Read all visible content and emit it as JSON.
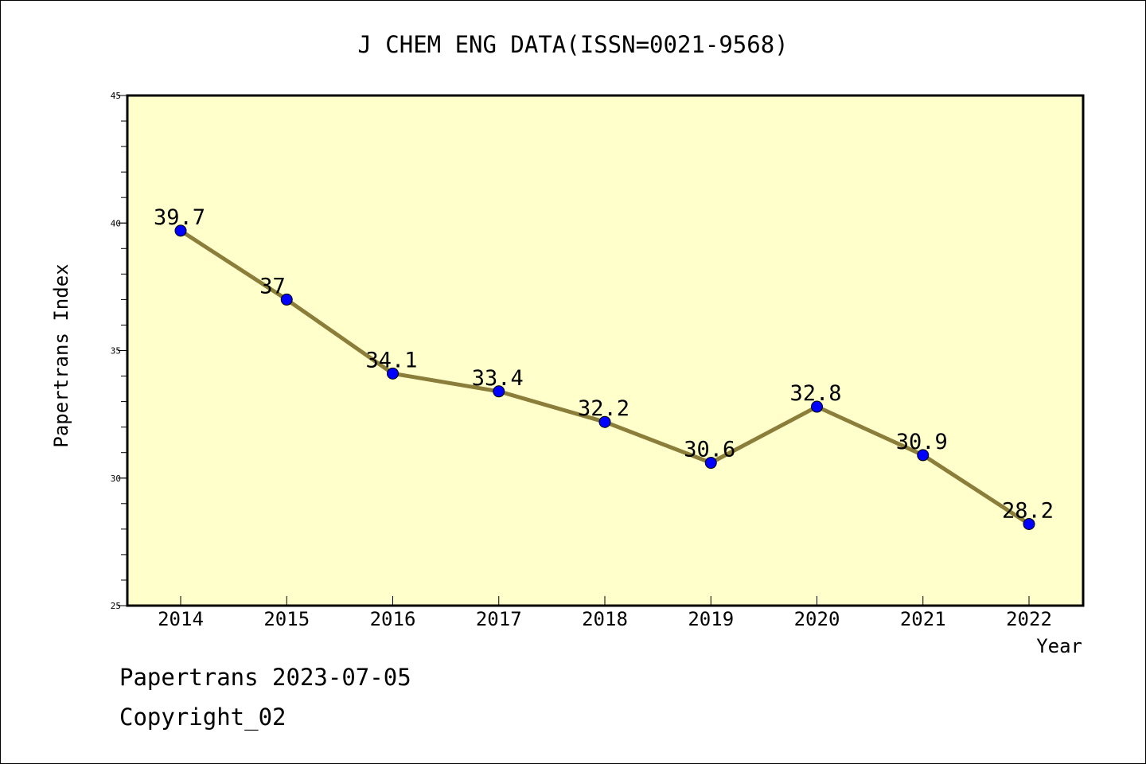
{
  "chart_data": {
    "type": "line",
    "title": "J CHEM ENG DATA(ISSN=0021-9568)",
    "xlabel": "Year",
    "ylabel": "Papertrans Index",
    "categories": [
      "2014",
      "2015",
      "2016",
      "2017",
      "2018",
      "2019",
      "2020",
      "2021",
      "2022"
    ],
    "values": [
      39.7,
      37,
      34.1,
      33.4,
      32.2,
      30.6,
      32.8,
      30.9,
      28.2
    ],
    "data_labels": [
      "39.7",
      "37",
      "34.1",
      "33.4",
      "32.2",
      "30.6",
      "32.8",
      "30.9",
      "28.2"
    ],
    "ylim": [
      25,
      45
    ],
    "y_ticks": [
      "25",
      "30",
      "35",
      "40",
      "45"
    ],
    "grid": false,
    "colors": {
      "plot_background": "#ffffcc",
      "line": "#8b7d3a",
      "marker": "#0000ff"
    }
  },
  "footer": {
    "source": "Papertrans 2023-07-05",
    "copyright": "Copyright_02"
  }
}
